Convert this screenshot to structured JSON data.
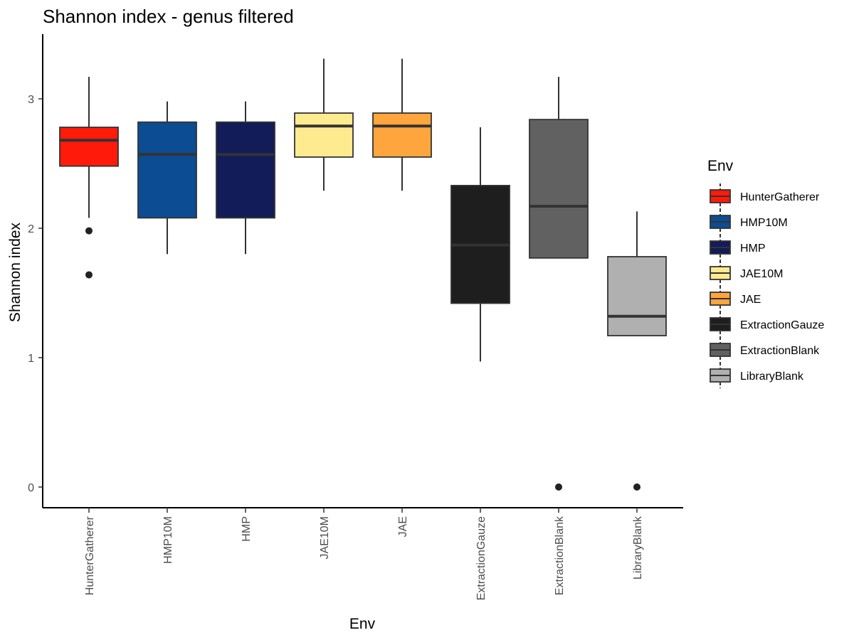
{
  "chart_data": {
    "type": "box",
    "title": "Shannon index - genus filtered",
    "xlabel": "Env",
    "ylabel": "Shannon index",
    "ylim": [
      -0.16,
      3.5
    ],
    "yticks": [
      0,
      1,
      2,
      3
    ],
    "grid": false,
    "legend": {
      "title": "Env",
      "position": "right"
    },
    "categories": [
      "HunterGatherer",
      "HMP10M",
      "HMP",
      "JAE10M",
      "JAE",
      "ExtractionGauze",
      "ExtractionBlank",
      "LibraryBlank"
    ],
    "series": [
      {
        "name": "HunterGatherer",
        "color": "#FF1A0A",
        "min": 2.08,
        "q1": 2.48,
        "median": 2.68,
        "q3": 2.78,
        "max": 3.17,
        "outliers": [
          1.98,
          1.64
        ]
      },
      {
        "name": "HMP10M",
        "color": "#0B4C92",
        "min": 1.8,
        "q1": 2.08,
        "median": 2.57,
        "q3": 2.82,
        "max": 2.98,
        "outliers": []
      },
      {
        "name": "HMP",
        "color": "#121C58",
        "min": 1.8,
        "q1": 2.08,
        "median": 2.57,
        "q3": 2.82,
        "max": 2.98,
        "outliers": []
      },
      {
        "name": "JAE10M",
        "color": "#FFEB8F",
        "min": 2.29,
        "q1": 2.55,
        "median": 2.79,
        "q3": 2.89,
        "max": 3.31,
        "outliers": []
      },
      {
        "name": "JAE",
        "color": "#FFA53E",
        "min": 2.29,
        "q1": 2.55,
        "median": 2.79,
        "q3": 2.89,
        "max": 3.31,
        "outliers": []
      },
      {
        "name": "ExtractionGauze",
        "color": "#1E1E1E",
        "min": 0.97,
        "q1": 1.42,
        "median": 1.87,
        "q3": 2.33,
        "max": 2.78,
        "outliers": []
      },
      {
        "name": "ExtractionBlank",
        "color": "#616161",
        "min": 1.77,
        "q1": 1.77,
        "median": 2.17,
        "q3": 2.84,
        "max": 3.17,
        "outliers": [
          0
        ]
      },
      {
        "name": "LibraryBlank",
        "color": "#B0B0B0",
        "min": 1.17,
        "q1": 1.17,
        "median": 1.32,
        "q3": 1.78,
        "max": 2.13,
        "outliers": [
          0
        ]
      }
    ]
  }
}
